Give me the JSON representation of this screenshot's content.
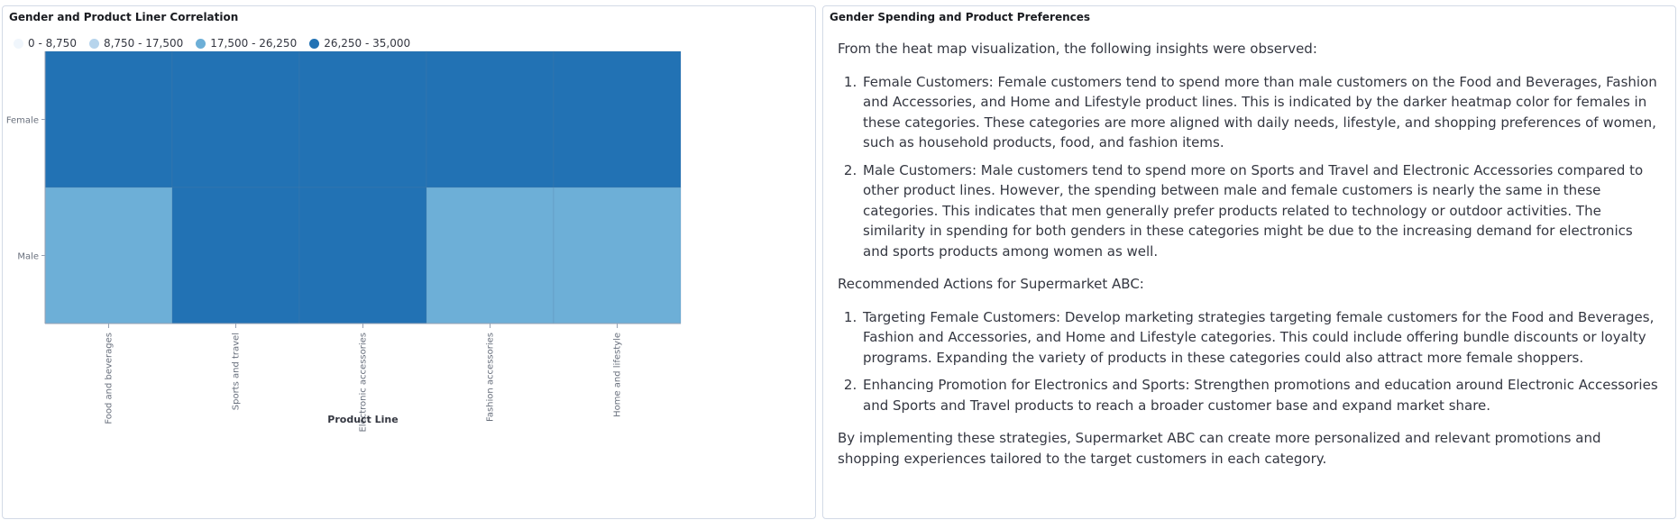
{
  "left_panel": {
    "title": "Gender and Product Liner Correlation"
  },
  "right_panel": {
    "title": "Gender Spending and Product Preferences",
    "intro": "From the heat map visualization, the following insights were observed:",
    "insights": [
      "Female Customers: Female customers tend to spend more than male customers on the Food and Beverages, Fashion and Accessories, and Home and Lifestyle product lines. This is indicated by the darker heatmap color for females in these categories. These categories are more aligned with daily needs, lifestyle, and shopping preferences of women, such as household products, food, and fashion items.",
      "Male Customers: Male customers tend to spend more on Sports and Travel and Electronic Accessories compared to other product lines. However, the spending between male and female customers is nearly the same in these categories. This indicates that men generally prefer products related to technology or outdoor activities. The similarity in spending for both genders in these categories might be due to the increasing demand for electronics and sports products among women as well."
    ],
    "actions_heading": "Recommended Actions for Supermarket ABC:",
    "actions": [
      "Targeting Female Customers: Develop marketing strategies targeting female customers for the Food and Beverages, Fashion and Accessories, and Home and Lifestyle categories. This could include offering bundle discounts or loyalty programs. Expanding the variety of products in these categories could also attract more female shoppers.",
      "Enhancing Promotion for Electronics and Sports: Strengthen promotions and education around Electronic Accessories and Sports and Travel products to reach a broader customer base and expand market share."
    ],
    "conclusion": "By implementing these strategies, Supermarket ABC can create more personalized and relevant promotions and shopping experiences tailored to the target customers in each category."
  },
  "chart_data": {
    "type": "heatmap",
    "title": "Gender and Product Liner Correlation",
    "xlabel": "Product Line",
    "ylabel": "",
    "x_categories": [
      "Food and beverages",
      "Sports and travel",
      "Electronic accessories",
      "Fashion accessories",
      "Home and lifestyle"
    ],
    "y_categories": [
      "Female",
      "Male"
    ],
    "values": [
      [
        30000,
        30000,
        30000,
        30000,
        30000
      ],
      [
        20000,
        30000,
        30000,
        20000,
        20000
      ]
    ],
    "legend": {
      "placement": "top-left",
      "bins": [
        {
          "label": "0 - 8,750",
          "min": 0,
          "max": 8750,
          "color": "#f0f6fc"
        },
        {
          "label": "8,750 - 17,500",
          "min": 8750,
          "max": 17500,
          "color": "#b6d4ec"
        },
        {
          "label": "17,500 - 26,250",
          "min": 17500,
          "max": 26250,
          "color": "#6dafd7"
        },
        {
          "label": "26,250 - 35,000",
          "min": 26250,
          "max": 35000,
          "color": "#2272b4"
        }
      ]
    },
    "grid": false
  }
}
